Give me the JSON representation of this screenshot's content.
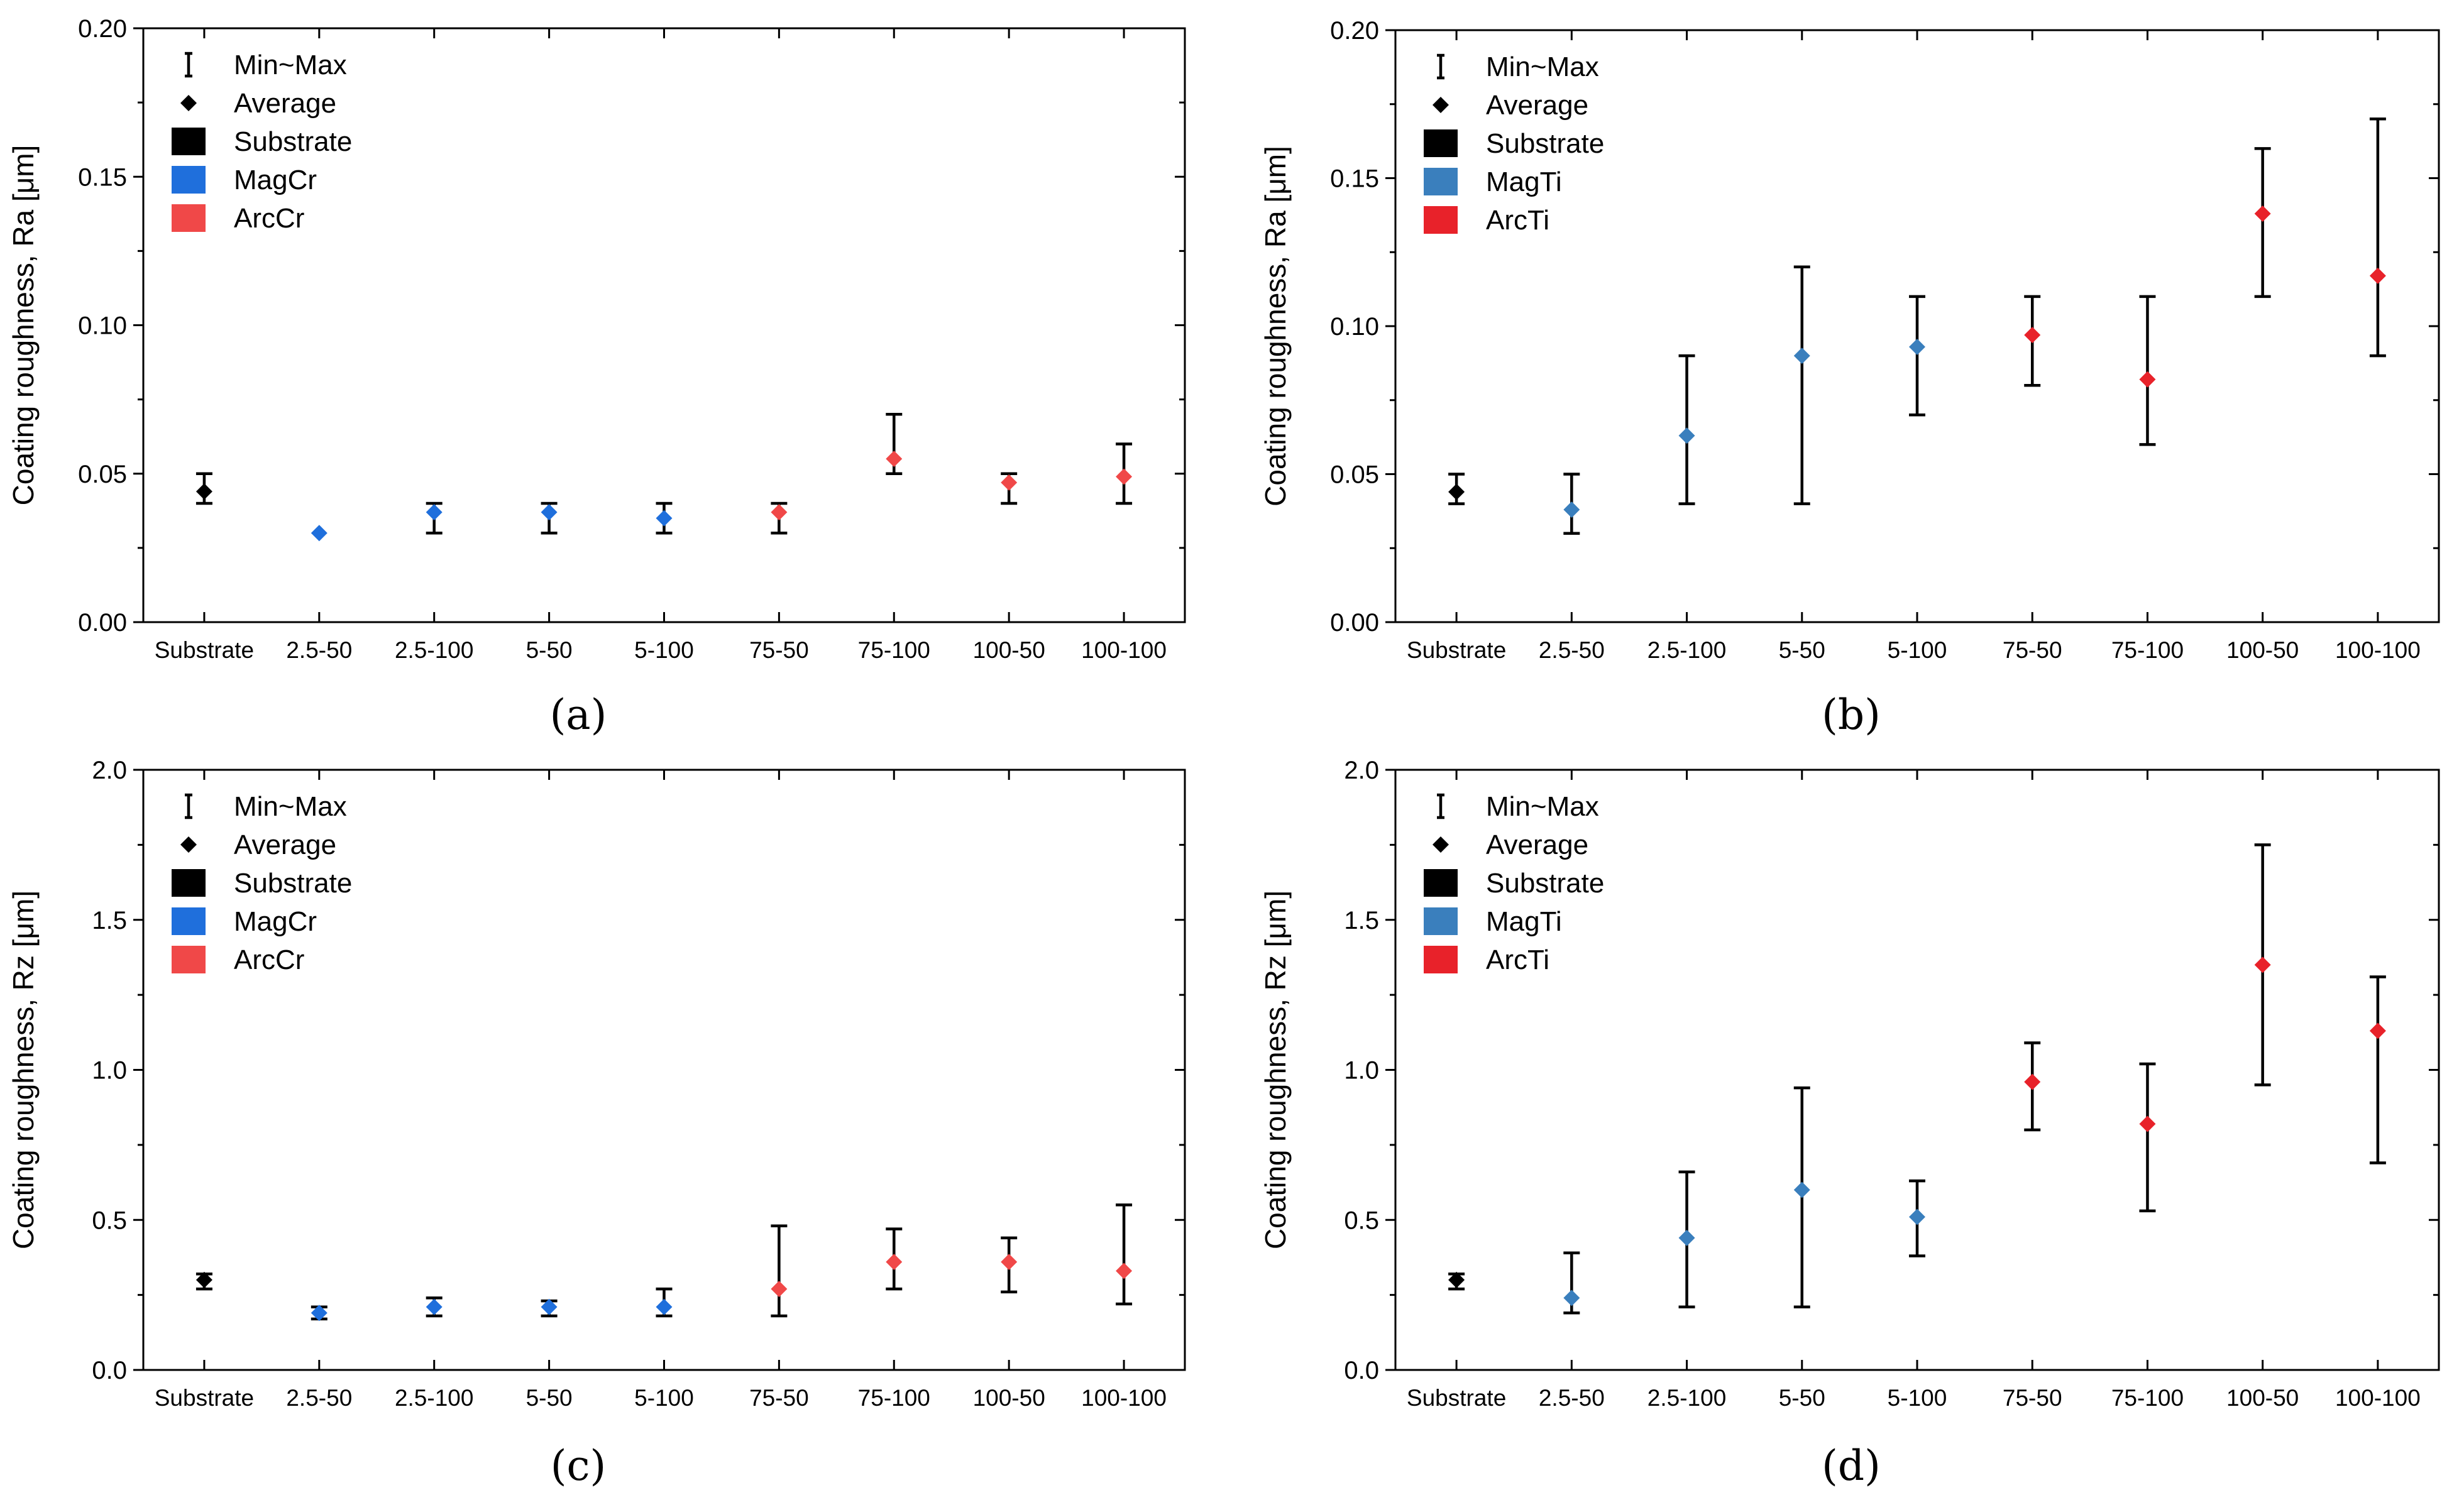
{
  "legend_labels": {
    "minmax": "Min~Max",
    "average": "Average",
    "substrate": "Substrate"
  },
  "chart_data": [
    {
      "panel": "(a)",
      "type": "scatter",
      "ylabel": "Coating roughness, Ra [μm]",
      "ylim": [
        0,
        0.2
      ],
      "yticks": [
        "0.00",
        "0.05",
        "0.10",
        "0.15",
        "0.20"
      ],
      "categories": [
        "Substrate",
        "2.5-50",
        "2.5-100",
        "5-50",
        "5-100",
        "75-50",
        "75-100",
        "100-50",
        "100-100"
      ],
      "colors": {
        "substrate": "#000000",
        "mag": "#1f6fdc",
        "arc": "#f04848"
      },
      "legend_series": [
        "MagCr",
        "ArcCr"
      ],
      "points": [
        {
          "category": "Substrate",
          "group": "substrate",
          "avg": 0.044,
          "min": 0.04,
          "max": 0.05
        },
        {
          "category": "2.5-50",
          "group": "mag",
          "avg": 0.03,
          "min": 0.03,
          "max": 0.03
        },
        {
          "category": "2.5-100",
          "group": "mag",
          "avg": 0.037,
          "min": 0.03,
          "max": 0.04
        },
        {
          "category": "5-50",
          "group": "mag",
          "avg": 0.037,
          "min": 0.03,
          "max": 0.04
        },
        {
          "category": "5-100",
          "group": "mag",
          "avg": 0.035,
          "min": 0.03,
          "max": 0.04
        },
        {
          "category": "75-50",
          "group": "arc",
          "avg": 0.037,
          "min": 0.03,
          "max": 0.04
        },
        {
          "category": "75-100",
          "group": "arc",
          "avg": 0.055,
          "min": 0.05,
          "max": 0.07
        },
        {
          "category": "100-50",
          "group": "arc",
          "avg": 0.047,
          "min": 0.04,
          "max": 0.05
        },
        {
          "category": "100-100",
          "group": "arc",
          "avg": 0.049,
          "min": 0.04,
          "max": 0.06
        }
      ]
    },
    {
      "panel": "(b)",
      "type": "scatter",
      "ylabel": "Coating roughness, Ra [μm]",
      "ylim": [
        0,
        0.2
      ],
      "yticks": [
        "0.00",
        "0.05",
        "0.10",
        "0.15",
        "0.20"
      ],
      "categories": [
        "Substrate",
        "2.5-50",
        "2.5-100",
        "5-50",
        "5-100",
        "75-50",
        "75-100",
        "100-50",
        "100-100"
      ],
      "colors": {
        "substrate": "#000000",
        "mag": "#3a7fbd",
        "arc": "#e8222a"
      },
      "legend_series": [
        "MagTi",
        "ArcTi"
      ],
      "points": [
        {
          "category": "Substrate",
          "group": "substrate",
          "avg": 0.044,
          "min": 0.04,
          "max": 0.05
        },
        {
          "category": "2.5-50",
          "group": "mag",
          "avg": 0.038,
          "min": 0.03,
          "max": 0.05
        },
        {
          "category": "2.5-100",
          "group": "mag",
          "avg": 0.063,
          "min": 0.04,
          "max": 0.09
        },
        {
          "category": "5-50",
          "group": "mag",
          "avg": 0.09,
          "min": 0.04,
          "max": 0.12
        },
        {
          "category": "5-100",
          "group": "mag",
          "avg": 0.093,
          "min": 0.07,
          "max": 0.11
        },
        {
          "category": "75-50",
          "group": "arc",
          "avg": 0.097,
          "min": 0.08,
          "max": 0.11
        },
        {
          "category": "75-100",
          "group": "arc",
          "avg": 0.082,
          "min": 0.06,
          "max": 0.11
        },
        {
          "category": "100-50",
          "group": "arc",
          "avg": 0.138,
          "min": 0.11,
          "max": 0.16
        },
        {
          "category": "100-100",
          "group": "arc",
          "avg": 0.117,
          "min": 0.09,
          "max": 0.17
        }
      ]
    },
    {
      "panel": "(c)",
      "type": "scatter",
      "ylabel": "Coating roughness, Rz [μm]",
      "ylim": [
        0,
        2.0
      ],
      "yticks": [
        "0.0",
        "0.5",
        "1.0",
        "1.5",
        "2.0"
      ],
      "categories": [
        "Substrate",
        "2.5-50",
        "2.5-100",
        "5-50",
        "5-100",
        "75-50",
        "75-100",
        "100-50",
        "100-100"
      ],
      "colors": {
        "substrate": "#000000",
        "mag": "#1f6fdc",
        "arc": "#f04848"
      },
      "legend_series": [
        "MagCr",
        "ArcCr"
      ],
      "points": [
        {
          "category": "Substrate",
          "group": "substrate",
          "avg": 0.3,
          "min": 0.27,
          "max": 0.32
        },
        {
          "category": "2.5-50",
          "group": "mag",
          "avg": 0.19,
          "min": 0.17,
          "max": 0.21
        },
        {
          "category": "2.5-100",
          "group": "mag",
          "avg": 0.21,
          "min": 0.18,
          "max": 0.24
        },
        {
          "category": "5-50",
          "group": "mag",
          "avg": 0.21,
          "min": 0.18,
          "max": 0.23
        },
        {
          "category": "5-100",
          "group": "mag",
          "avg": 0.21,
          "min": 0.18,
          "max": 0.27
        },
        {
          "category": "75-50",
          "group": "arc",
          "avg": 0.27,
          "min": 0.18,
          "max": 0.48
        },
        {
          "category": "75-100",
          "group": "arc",
          "avg": 0.36,
          "min": 0.27,
          "max": 0.47
        },
        {
          "category": "100-50",
          "group": "arc",
          "avg": 0.36,
          "min": 0.26,
          "max": 0.44
        },
        {
          "category": "100-100",
          "group": "arc",
          "avg": 0.33,
          "min": 0.22,
          "max": 0.55
        }
      ]
    },
    {
      "panel": "(d)",
      "type": "scatter",
      "ylabel": "Coating roughness, Rz [μm]",
      "ylim": [
        0,
        2.0
      ],
      "yticks": [
        "0.0",
        "0.5",
        "1.0",
        "1.5",
        "2.0"
      ],
      "categories": [
        "Substrate",
        "2.5-50",
        "2.5-100",
        "5-50",
        "5-100",
        "75-50",
        "75-100",
        "100-50",
        "100-100"
      ],
      "colors": {
        "substrate": "#000000",
        "mag": "#3a7fbd",
        "arc": "#e8222a"
      },
      "legend_series": [
        "MagTi",
        "ArcTi"
      ],
      "points": [
        {
          "category": "Substrate",
          "group": "substrate",
          "avg": 0.3,
          "min": 0.27,
          "max": 0.32
        },
        {
          "category": "2.5-50",
          "group": "mag",
          "avg": 0.24,
          "min": 0.19,
          "max": 0.39
        },
        {
          "category": "2.5-100",
          "group": "mag",
          "avg": 0.44,
          "min": 0.21,
          "max": 0.66
        },
        {
          "category": "5-50",
          "group": "mag",
          "avg": 0.6,
          "min": 0.21,
          "max": 0.94
        },
        {
          "category": "5-100",
          "group": "mag",
          "avg": 0.51,
          "min": 0.38,
          "max": 0.63
        },
        {
          "category": "75-50",
          "group": "arc",
          "avg": 0.96,
          "min": 0.8,
          "max": 1.09
        },
        {
          "category": "75-100",
          "group": "arc",
          "avg": 0.82,
          "min": 0.53,
          "max": 1.02
        },
        {
          "category": "100-50",
          "group": "arc",
          "avg": 1.35,
          "min": 0.95,
          "max": 1.75
        },
        {
          "category": "100-100",
          "group": "arc",
          "avg": 1.13,
          "min": 0.69,
          "max": 1.31
        }
      ]
    }
  ]
}
